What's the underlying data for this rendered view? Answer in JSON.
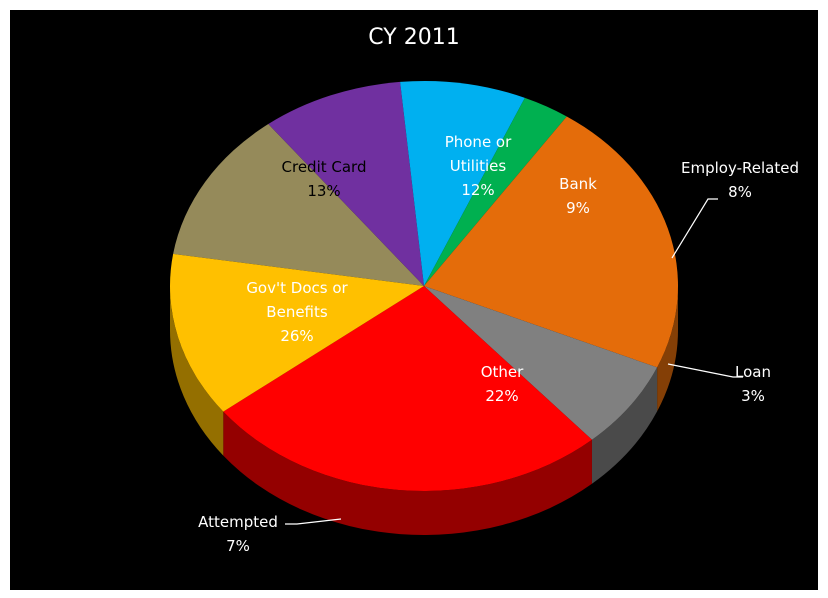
{
  "chart_data": {
    "type": "pie",
    "title": "CY 2011",
    "colors": {
      "background": "#000000",
      "label_light": "#ffffff",
      "label_dark": "#000000",
      "leader": "#ffffff"
    },
    "slices": [
      {
        "label_lines": [
          "Phone or",
          "Utilities"
        ],
        "value_label": "12%",
        "value": 12,
        "color": "#958a5a",
        "label_color": "#ffffff"
      },
      {
        "label_lines": [
          "Bank"
        ],
        "value_label": "9%",
        "value": 9,
        "color": "#7030a0",
        "label_color": "#ffffff"
      },
      {
        "label_lines": [
          "Employ-Related"
        ],
        "value_label": "8%",
        "value": 8,
        "color": "#00b0f0",
        "label_color": "#ffffff"
      },
      {
        "label_lines": [
          "Loan"
        ],
        "value_label": "3%",
        "value": 3,
        "color": "#00b050",
        "label_color": "#ffffff"
      },
      {
        "label_lines": [
          "Other"
        ],
        "value_label": "22%",
        "value": 22,
        "color": "#e46c0a",
        "label_color": "#ffffff"
      },
      {
        "label_lines": [
          "Attempted"
        ],
        "value_label": "7%",
        "value": 7,
        "color": "#808080",
        "label_color": "#ffffff"
      },
      {
        "label_lines": [
          "Gov't Docs or",
          "Benefits"
        ],
        "value_label": "26%",
        "value": 26,
        "color": "#ff0000",
        "label_color": "#ffffff"
      },
      {
        "label_lines": [
          "Credit Card"
        ],
        "value_label": "13%",
        "value": 13,
        "color": "#ffc000",
        "label_color": "#000000"
      }
    ]
  }
}
